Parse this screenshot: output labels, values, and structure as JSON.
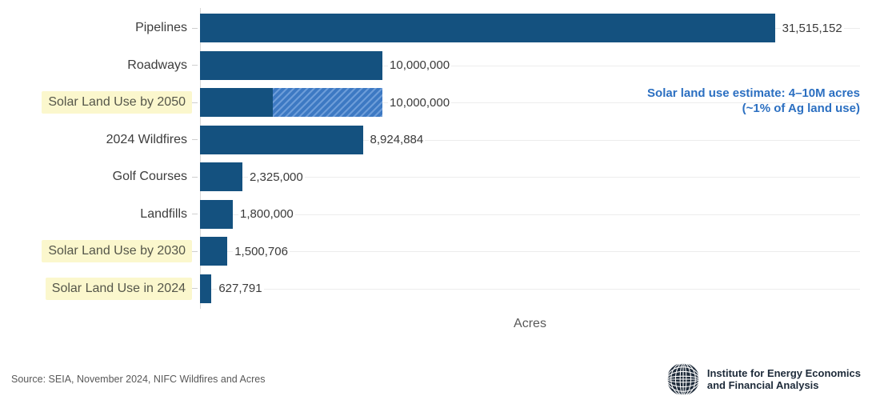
{
  "chart_data": {
    "type": "bar",
    "orientation": "horizontal",
    "title": "",
    "xlabel": "Acres",
    "ylabel": "",
    "grid": "horizontal-per-category",
    "scale_max": 36180000,
    "bars": [
      {
        "label": "Pipelines",
        "value": 31515152,
        "value_label": "31,515,152",
        "highlight": false
      },
      {
        "label": "Roadways",
        "value": 10000000,
        "value_label": "10,000,000",
        "highlight": false
      },
      {
        "label": "Solar Land Use by 2050",
        "value": 10000000,
        "value_label": "10,000,000",
        "highlight": true,
        "hatch_from": 4000000
      },
      {
        "label": "2024 Wildfires",
        "value": 8924884,
        "value_label": "8,924,884",
        "highlight": false
      },
      {
        "label": "Golf Courses",
        "value": 2325000,
        "value_label": "2,325,000",
        "highlight": false
      },
      {
        "label": "Landfills",
        "value": 1800000,
        "value_label": "1,800,000",
        "highlight": false
      },
      {
        "label": "Solar Land Use by 2030",
        "value": 1500706,
        "value_label": "1,500,706",
        "highlight": true
      },
      {
        "label": "Solar Land Use in 2024",
        "value": 627791,
        "value_label": "627,791",
        "highlight": true
      }
    ],
    "annotation": {
      "line1": "Solar land use estimate: 4–10M acres",
      "line2": "(~1% of Ag land use)"
    }
  },
  "footer": {
    "source": "Source: SEIA, November 2024, NIFC Wildfires and Acres",
    "logo_line1": "Institute for Energy Economics",
    "logo_line2": "and Financial Analysis"
  },
  "colors": {
    "bar": "#14517f",
    "hatch_bg": "#3d79c3",
    "hatch_stripe": "#6d9dd9",
    "highlight": "#fbf7cd",
    "annotation": "#2b6fc1",
    "grid": "#ececec",
    "axis": "#d8d8d8",
    "text": "#3d3d3d",
    "muted": "#595959",
    "logo": "#1d2a39"
  }
}
